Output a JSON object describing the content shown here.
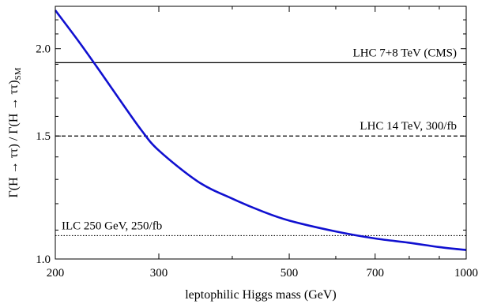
{
  "chart_data": {
    "type": "line",
    "xlabel": "leptophilic Higgs mass (GeV)",
    "ylabel": "Γ(H → ττ) / Γ(H → ττ)",
    "ylabel_subscript": "SM",
    "x_scale": "log",
    "xlim": [
      200,
      1000
    ],
    "ylim": [
      1.0,
      2.3
    ],
    "y_scale": "log",
    "x_ticks": [
      {
        "value": 200,
        "label": "200"
      },
      {
        "value": 300,
        "label": "300"
      },
      {
        "value": 500,
        "label": "500"
      },
      {
        "value": 700,
        "label": "700"
      },
      {
        "value": 1000,
        "label": "1000"
      }
    ],
    "y_ticks": [
      {
        "value": 1.0,
        "label": "1.0"
      },
      {
        "value": 1.5,
        "label": "1.5"
      },
      {
        "value": 2.0,
        "label": "2.0"
      }
    ],
    "series": [
      {
        "color": "#1010d0",
        "x": [
          200,
          220,
          240,
          260,
          280,
          300,
          350,
          400,
          450,
          500,
          600,
          700,
          800,
          900,
          1000
        ],
        "y": [
          2.27,
          2.04,
          1.84,
          1.67,
          1.53,
          1.43,
          1.29,
          1.22,
          1.17,
          1.135,
          1.095,
          1.07,
          1.055,
          1.04,
          1.03
        ]
      }
    ],
    "reference_lines": [
      {
        "label": "LHC 7+8 TeV (CMS)",
        "y": 1.91,
        "style": "solid"
      },
      {
        "label": "LHC 14 TeV, 300/fb",
        "y": 1.5,
        "style": "dashed"
      },
      {
        "label": "ILC 250 GeV, 250/fb",
        "y": 1.08,
        "style": "dotted"
      }
    ],
    "grid": false
  }
}
